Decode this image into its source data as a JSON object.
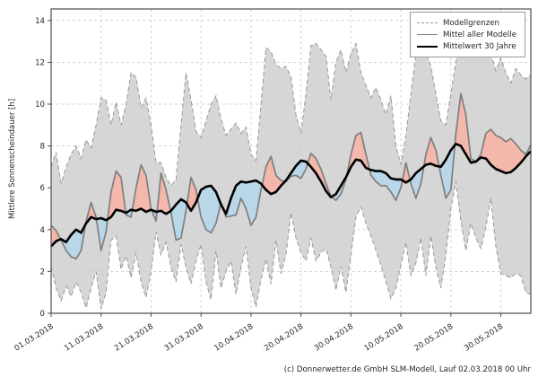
{
  "footer": "(c) Donnerwetter.de GmbH SLM-Modell, Lauf 02.03.2018 00 Uhr",
  "legend": {
    "items": [
      {
        "label": "Modellgrenzen",
        "style": "dashed-gray"
      },
      {
        "label": "Mittel aller Modelle",
        "style": "solid-gray"
      },
      {
        "label": "Mittelwert 30 Jahre",
        "style": "solid-black-thick"
      }
    ]
  },
  "chart_data": {
    "type": "line",
    "title": "",
    "xlabel": "",
    "ylabel": "Mittlere Sonnenscheindauer [h]",
    "ylim": [
      0,
      14.55
    ],
    "y_ticks": [
      0,
      2,
      4,
      6,
      8,
      10,
      12,
      14
    ],
    "grid": true,
    "legend_position": "upper right",
    "x_tick_labels": [
      "01.03.2018",
      "11.03.2018",
      "21.03.2018",
      "31.03.2018",
      "10.04.2018",
      "20.04.2018",
      "30.04.2018",
      "10.05.2018",
      "20.05.2018",
      "30.05.2018"
    ],
    "x_tick_days": [
      0,
      10,
      20,
      30,
      40,
      50,
      60,
      70,
      80,
      90
    ],
    "x_is_days_since": "01.03.2018",
    "n_days": 97,
    "series": [
      {
        "name": "Modellgrenzen oben",
        "role": "upper_bound",
        "values": [
          7.0,
          7.7,
          6.2,
          7.0,
          7.6,
          8.0,
          7.4,
          8.3,
          7.9,
          9.0,
          10.3,
          10.2,
          9.0,
          10.1,
          9.0,
          10.0,
          11.5,
          11.3,
          9.8,
          10.3,
          9.0,
          7.2,
          7.2,
          6.5,
          6.1,
          6.4,
          9.0,
          11.5,
          10.2,
          8.7,
          8.4,
          9.2,
          10.0,
          10.4,
          9.3,
          8.5,
          8.8,
          9.1,
          8.6,
          8.9,
          7.6,
          7.3,
          10.0,
          12.7,
          12.5,
          11.9,
          11.7,
          11.8,
          11.3,
          9.5,
          8.6,
          10.5,
          12.8,
          12.9,
          12.6,
          12.3,
          10.2,
          12.0,
          12.6,
          11.5,
          12.4,
          12.9,
          11.5,
          10.9,
          10.3,
          10.8,
          10.2,
          9.5,
          10.4,
          8.0,
          7.1,
          8.5,
          10.5,
          12.4,
          12.6,
          12.5,
          11.8,
          10.5,
          9.2,
          9.0,
          10.5,
          12.0,
          13.2,
          13.6,
          13.3,
          12.9,
          12.7,
          12.5,
          12.4,
          11.6,
          12.2,
          11.5,
          11.0,
          11.7,
          11.4,
          11.2,
          11.4
        ]
      },
      {
        "name": "Modellgrenzen unten",
        "role": "lower_bound",
        "values": [
          2.25,
          1.2,
          0.6,
          1.3,
          0.8,
          1.5,
          1.0,
          0.25,
          1.2,
          2.0,
          0.2,
          1.0,
          3.5,
          3.7,
          2.1,
          2.75,
          1.7,
          2.9,
          1.5,
          0.75,
          2.0,
          3.9,
          2.8,
          3.4,
          2.2,
          1.5,
          3.3,
          2.2,
          1.4,
          2.5,
          3.3,
          1.5,
          0.65,
          3.0,
          1.2,
          2.0,
          2.5,
          0.9,
          2.2,
          3.2,
          1.2,
          0.3,
          1.6,
          2.6,
          1.4,
          3.5,
          1.9,
          2.8,
          4.8,
          3.6,
          2.9,
          2.5,
          3.6,
          2.5,
          2.9,
          3.1,
          2.2,
          1.1,
          2.25,
          1.0,
          2.8,
          4.6,
          5.1,
          4.3,
          3.7,
          3.0,
          2.3,
          1.5,
          0.7,
          1.2,
          2.3,
          3.4,
          1.8,
          2.4,
          3.6,
          1.8,
          3.7,
          2.2,
          1.2,
          2.8,
          5.0,
          6.3,
          4.4,
          3.0,
          4.3,
          3.6,
          3.1,
          4.1,
          5.5,
          3.2,
          1.9,
          1.8,
          1.7,
          1.9,
          1.8,
          1.0,
          0.9
        ]
      },
      {
        "name": "Mittel aller Modelle",
        "role": "model_mean",
        "values": [
          4.2,
          3.95,
          3.5,
          3.0,
          2.7,
          2.6,
          3.0,
          4.4,
          5.3,
          4.6,
          3.0,
          3.9,
          5.8,
          6.8,
          6.5,
          4.7,
          4.6,
          6.0,
          7.1,
          6.6,
          5.0,
          4.4,
          6.7,
          5.9,
          4.8,
          3.5,
          3.6,
          4.9,
          6.5,
          5.9,
          4.6,
          4.0,
          3.85,
          4.3,
          5.3,
          4.6,
          4.65,
          4.7,
          5.5,
          5.0,
          4.2,
          4.6,
          5.9,
          7.0,
          7.5,
          6.6,
          6.35,
          6.3,
          6.55,
          6.6,
          6.45,
          6.9,
          7.65,
          7.4,
          6.9,
          6.2,
          5.6,
          5.4,
          5.7,
          6.4,
          7.6,
          8.5,
          8.65,
          7.6,
          6.6,
          6.3,
          6.1,
          6.1,
          5.8,
          5.4,
          6.0,
          7.2,
          6.2,
          5.5,
          6.2,
          7.6,
          8.4,
          7.8,
          6.6,
          5.5,
          5.9,
          8.6,
          10.5,
          9.5,
          7.4,
          7.25,
          7.6,
          8.6,
          8.8,
          8.5,
          8.4,
          8.2,
          8.35,
          8.1,
          7.8,
          7.6,
          8.05
        ]
      },
      {
        "name": "Mittelwert 30 Jahre",
        "role": "mean_30y",
        "values": [
          3.2,
          3.45,
          3.55,
          3.4,
          3.75,
          4.0,
          3.85,
          4.3,
          4.6,
          4.5,
          4.55,
          4.45,
          4.6,
          4.95,
          4.9,
          4.8,
          4.95,
          4.9,
          5.0,
          4.85,
          4.95,
          4.85,
          4.9,
          4.75,
          4.9,
          5.2,
          5.45,
          5.3,
          4.9,
          5.3,
          5.9,
          6.05,
          6.1,
          5.8,
          5.2,
          4.75,
          5.5,
          6.1,
          6.3,
          6.25,
          6.3,
          6.35,
          6.2,
          5.9,
          5.7,
          5.8,
          6.1,
          6.35,
          6.7,
          7.05,
          7.3,
          7.25,
          7.0,
          6.7,
          6.3,
          5.85,
          5.55,
          5.7,
          6.1,
          6.5,
          7.0,
          7.35,
          7.3,
          6.95,
          6.85,
          6.8,
          6.8,
          6.7,
          6.45,
          6.4,
          6.4,
          6.25,
          6.4,
          6.7,
          6.9,
          7.1,
          7.15,
          7.05,
          7.0,
          7.35,
          7.8,
          8.1,
          8.0,
          7.6,
          7.2,
          7.25,
          7.45,
          7.4,
          7.1,
          6.9,
          6.8,
          6.7,
          6.75,
          6.95,
          7.2,
          7.5,
          7.75
        ]
      }
    ],
    "colors": {
      "band_fill": "#d6d6d6",
      "band_edge": "#999999",
      "model_mean_line": "#7f7f7f",
      "mean30_line": "#000000",
      "fill_above_mean": "#f3b7ab",
      "fill_below_mean": "#b9d7e8",
      "grid": "#cfcfcf",
      "spine": "#4d4d4d",
      "text": "#262626"
    }
  }
}
